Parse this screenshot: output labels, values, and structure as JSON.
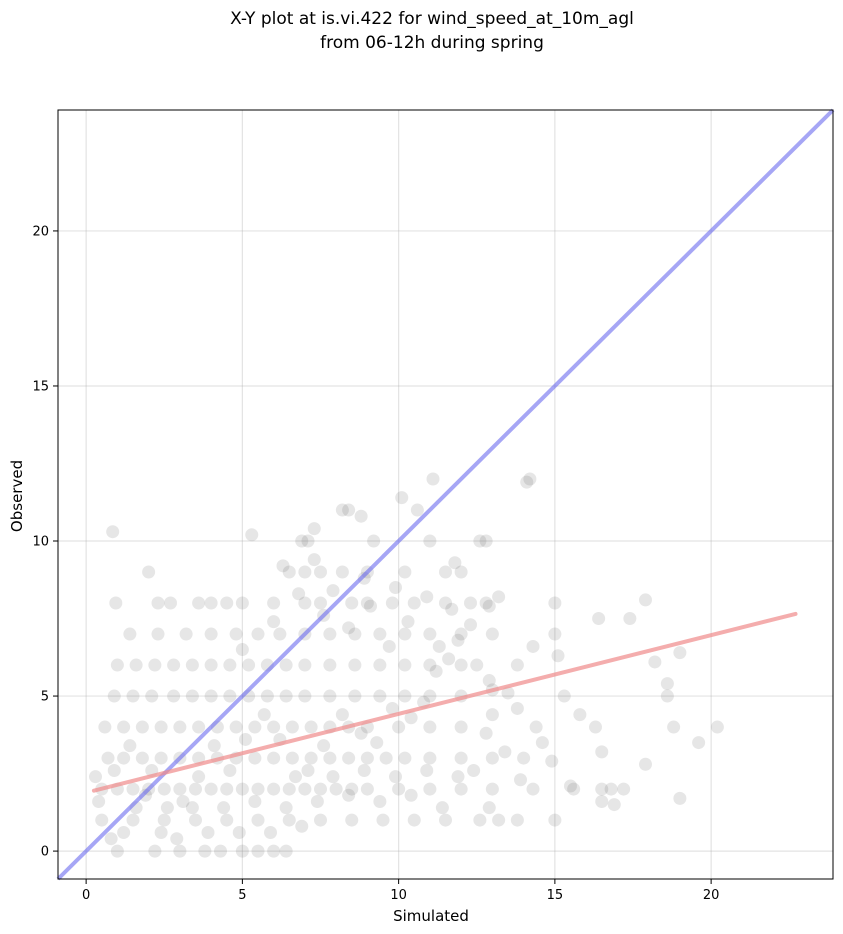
{
  "chart_data": {
    "type": "scatter",
    "title_line1": "X-Y plot at is.vi.422 for wind_speed_at_10m_agl",
    "title_line2": "from 06-12h during spring",
    "xlabel": "Simulated",
    "ylabel": "Observed",
    "xlim": [
      -0.9,
      23.9
    ],
    "ylim": [
      -0.9,
      23.9
    ],
    "xticks": [
      0,
      5,
      10,
      15,
      20
    ],
    "yticks": [
      0,
      5,
      10,
      15,
      20
    ],
    "grid": true,
    "point_color": "#555555",
    "identity_line": {
      "x": [
        -0.9,
        23.9
      ],
      "y": [
        -0.9,
        23.9
      ],
      "color": "#6b6bef"
    },
    "fit_line": {
      "x": [
        0.25,
        22.7
      ],
      "y": [
        1.95,
        7.65
      ],
      "color": "#f08a8a"
    },
    "points": [
      [
        0.85,
        10.3
      ],
      [
        5.3,
        10.2
      ],
      [
        2.0,
        9.0
      ],
      [
        0.95,
        8.0
      ],
      [
        2.3,
        8.0
      ],
      [
        2.7,
        8.0
      ],
      [
        3.6,
        8.0
      ],
      [
        4.0,
        8.0
      ],
      [
        4.5,
        8.0
      ],
      [
        5.0,
        8.0
      ],
      [
        6.0,
        8.0
      ],
      [
        7.0,
        8.0
      ],
      [
        7.5,
        8.0
      ],
      [
        8.5,
        8.0
      ],
      [
        9.0,
        8.0
      ],
      [
        9.8,
        8.0
      ],
      [
        10.5,
        8.0
      ],
      [
        11.5,
        8.0
      ],
      [
        12.3,
        8.0
      ],
      [
        12.8,
        8.0
      ],
      [
        15.0,
        8.0
      ],
      [
        6.5,
        9.0
      ],
      [
        7.0,
        9.0
      ],
      [
        7.5,
        9.0
      ],
      [
        8.2,
        9.0
      ],
      [
        9.0,
        9.0
      ],
      [
        10.2,
        9.0
      ],
      [
        11.5,
        9.0
      ],
      [
        12.0,
        9.0
      ],
      [
        6.3,
        9.2
      ],
      [
        6.9,
        10.0
      ],
      [
        7.3,
        10.4
      ],
      [
        7.1,
        10.0
      ],
      [
        8.2,
        11.0
      ],
      [
        8.4,
        11.0
      ],
      [
        8.8,
        10.8
      ],
      [
        9.2,
        10.0
      ],
      [
        10.1,
        11.4
      ],
      [
        10.6,
        11.0
      ],
      [
        11.0,
        10.0
      ],
      [
        11.1,
        12.0
      ],
      [
        12.6,
        10.0
      ],
      [
        12.8,
        10.0
      ],
      [
        14.1,
        11.9
      ],
      [
        14.2,
        12.0
      ],
      [
        16.4,
        7.5
      ],
      [
        17.4,
        7.5
      ],
      [
        17.9,
        8.1
      ],
      [
        18.2,
        6.1
      ],
      [
        18.6,
        5.4
      ],
      [
        18.6,
        5.0
      ],
      [
        19.0,
        6.4
      ],
      [
        18.8,
        4.0
      ],
      [
        19.6,
        3.5
      ],
      [
        20.2,
        4.0
      ],
      [
        17.9,
        2.8
      ],
      [
        19.0,
        1.7
      ],
      [
        16.3,
        4.0
      ],
      [
        16.5,
        3.2
      ],
      [
        15.8,
        4.4
      ],
      [
        15.6,
        2.0
      ],
      [
        15.5,
        2.1
      ],
      [
        16.5,
        2.0
      ],
      [
        16.8,
        2.0
      ],
      [
        17.2,
        2.0
      ],
      [
        16.9,
        1.5
      ],
      [
        16.5,
        1.6
      ],
      [
        15.0,
        1.0
      ],
      [
        14.3,
        2.0
      ],
      [
        14.6,
        3.5
      ],
      [
        14.4,
        4.0
      ],
      [
        14.0,
        3.0
      ],
      [
        13.8,
        1.0
      ],
      [
        13.2,
        1.0
      ],
      [
        12.6,
        1.0
      ],
      [
        11.5,
        1.0
      ],
      [
        10.5,
        1.0
      ],
      [
        9.5,
        1.0
      ],
      [
        8.5,
        1.0
      ],
      [
        7.5,
        1.0
      ],
      [
        6.5,
        1.0
      ],
      [
        5.5,
        1.0
      ],
      [
        4.5,
        1.0
      ],
      [
        3.5,
        1.0
      ],
      [
        2.5,
        1.0
      ],
      [
        1.5,
        1.0
      ],
      [
        0.5,
        1.0
      ],
      [
        1.0,
        0.0
      ],
      [
        2.2,
        0.0
      ],
      [
        3.0,
        0.0
      ],
      [
        3.8,
        0.0
      ],
      [
        4.3,
        0.0
      ],
      [
        5.0,
        0.0
      ],
      [
        5.5,
        0.0
      ],
      [
        6.0,
        0.0
      ],
      [
        6.4,
        0.0
      ],
      [
        0.5,
        2.0
      ],
      [
        1.0,
        2.0
      ],
      [
        1.5,
        2.0
      ],
      [
        2.0,
        2.0
      ],
      [
        2.5,
        2.0
      ],
      [
        3.0,
        2.0
      ],
      [
        3.5,
        2.0
      ],
      [
        4.0,
        2.0
      ],
      [
        4.5,
        2.0
      ],
      [
        5.0,
        2.0
      ],
      [
        5.5,
        2.0
      ],
      [
        6.0,
        2.0
      ],
      [
        6.5,
        2.0
      ],
      [
        7.0,
        2.0
      ],
      [
        7.5,
        2.0
      ],
      [
        8.0,
        2.0
      ],
      [
        8.5,
        2.0
      ],
      [
        9.0,
        2.0
      ],
      [
        10.0,
        2.0
      ],
      [
        11.0,
        2.0
      ],
      [
        12.0,
        2.0
      ],
      [
        13.0,
        2.0
      ],
      [
        0.7,
        3.0
      ],
      [
        1.2,
        3.0
      ],
      [
        1.8,
        3.0
      ],
      [
        2.4,
        3.0
      ],
      [
        3.0,
        3.0
      ],
      [
        3.6,
        3.0
      ],
      [
        4.2,
        3.0
      ],
      [
        4.8,
        3.0
      ],
      [
        5.4,
        3.0
      ],
      [
        6.0,
        3.0
      ],
      [
        6.6,
        3.0
      ],
      [
        7.2,
        3.0
      ],
      [
        7.8,
        3.0
      ],
      [
        8.4,
        3.0
      ],
      [
        9.0,
        3.0
      ],
      [
        9.6,
        3.0
      ],
      [
        10.2,
        3.0
      ],
      [
        11.0,
        3.0
      ],
      [
        12.0,
        3.0
      ],
      [
        13.0,
        3.0
      ],
      [
        0.6,
        4.0
      ],
      [
        1.2,
        4.0
      ],
      [
        1.8,
        4.0
      ],
      [
        2.4,
        4.0
      ],
      [
        3.0,
        4.0
      ],
      [
        3.6,
        4.0
      ],
      [
        4.2,
        4.0
      ],
      [
        4.8,
        4.0
      ],
      [
        5.4,
        4.0
      ],
      [
        6.0,
        4.0
      ],
      [
        6.6,
        4.0
      ],
      [
        7.2,
        4.0
      ],
      [
        7.8,
        4.0
      ],
      [
        8.4,
        4.0
      ],
      [
        9.0,
        4.0
      ],
      [
        10.0,
        4.0
      ],
      [
        11.0,
        4.0
      ],
      [
        12.0,
        4.0
      ],
      [
        0.9,
        5.0
      ],
      [
        1.5,
        5.0
      ],
      [
        2.1,
        5.0
      ],
      [
        2.8,
        5.0
      ],
      [
        3.4,
        5.0
      ],
      [
        4.0,
        5.0
      ],
      [
        4.6,
        5.0
      ],
      [
        5.2,
        5.0
      ],
      [
        5.8,
        5.0
      ],
      [
        6.4,
        5.0
      ],
      [
        7.0,
        5.0
      ],
      [
        7.8,
        5.0
      ],
      [
        8.6,
        5.0
      ],
      [
        9.4,
        5.0
      ],
      [
        10.2,
        5.0
      ],
      [
        11.0,
        5.0
      ],
      [
        12.0,
        5.0
      ],
      [
        13.0,
        5.2
      ],
      [
        1.0,
        6.0
      ],
      [
        1.6,
        6.0
      ],
      [
        2.2,
        6.0
      ],
      [
        2.8,
        6.0
      ],
      [
        3.4,
        6.0
      ],
      [
        4.0,
        6.0
      ],
      [
        4.6,
        6.0
      ],
      [
        5.2,
        6.0
      ],
      [
        5.8,
        6.0
      ],
      [
        6.4,
        6.0
      ],
      [
        7.0,
        6.0
      ],
      [
        7.8,
        6.0
      ],
      [
        8.6,
        6.0
      ],
      [
        9.4,
        6.0
      ],
      [
        10.2,
        6.0
      ],
      [
        11.0,
        6.0
      ],
      [
        12.0,
        6.0
      ],
      [
        13.8,
        6.0
      ],
      [
        1.4,
        7.0
      ],
      [
        2.3,
        7.0
      ],
      [
        3.2,
        7.0
      ],
      [
        4.0,
        7.0
      ],
      [
        4.8,
        7.0
      ],
      [
        5.5,
        7.0
      ],
      [
        6.2,
        7.0
      ],
      [
        7.0,
        7.0
      ],
      [
        7.8,
        7.0
      ],
      [
        8.6,
        7.0
      ],
      [
        9.4,
        7.0
      ],
      [
        10.2,
        7.0
      ],
      [
        11.0,
        7.0
      ],
      [
        12.0,
        7.0
      ],
      [
        13.0,
        7.0
      ],
      [
        15.0,
        7.0
      ],
      [
        15.1,
        6.3
      ],
      [
        14.3,
        6.6
      ],
      [
        13.5,
        5.1
      ],
      [
        13.8,
        4.6
      ],
      [
        13.0,
        4.4
      ],
      [
        12.8,
        3.8
      ],
      [
        12.9,
        5.5
      ],
      [
        12.5,
        6.0
      ],
      [
        11.6,
        6.2
      ],
      [
        11.2,
        5.8
      ],
      [
        10.8,
        4.8
      ],
      [
        10.4,
        4.3
      ],
      [
        9.8,
        4.6
      ],
      [
        9.3,
        3.5
      ],
      [
        8.8,
        3.8
      ],
      [
        8.2,
        4.4
      ],
      [
        7.6,
        3.4
      ],
      [
        7.1,
        2.6
      ],
      [
        6.7,
        2.4
      ],
      [
        6.2,
        3.6
      ],
      [
        5.7,
        4.4
      ],
      [
        5.1,
        3.6
      ],
      [
        4.6,
        2.6
      ],
      [
        4.1,
        3.4
      ],
      [
        3.6,
        2.4
      ],
      [
        3.1,
        1.6
      ],
      [
        2.6,
        1.4
      ],
      [
        2.1,
        2.6
      ],
      [
        1.6,
        1.4
      ],
      [
        1.2,
        0.6
      ],
      [
        0.8,
        0.4
      ],
      [
        0.4,
        1.6
      ],
      [
        0.3,
        2.4
      ],
      [
        0.9,
        2.6
      ],
      [
        1.4,
        3.4
      ],
      [
        1.9,
        1.8
      ],
      [
        2.4,
        0.6
      ],
      [
        2.9,
        0.4
      ],
      [
        3.4,
        1.4
      ],
      [
        3.9,
        0.6
      ],
      [
        4.4,
        1.4
      ],
      [
        4.9,
        0.6
      ],
      [
        5.4,
        1.6
      ],
      [
        5.9,
        0.6
      ],
      [
        6.4,
        1.4
      ],
      [
        6.9,
        0.8
      ],
      [
        7.4,
        1.6
      ],
      [
        7.9,
        2.4
      ],
      [
        8.4,
        1.8
      ],
      [
        8.9,
        2.6
      ],
      [
        9.4,
        1.6
      ],
      [
        9.9,
        2.4
      ],
      [
        10.4,
        1.8
      ],
      [
        10.9,
        2.6
      ],
      [
        11.4,
        1.4
      ],
      [
        11.9,
        2.4
      ],
      [
        12.4,
        2.6
      ],
      [
        12.9,
        1.4
      ],
      [
        13.4,
        3.2
      ],
      [
        13.9,
        2.3
      ],
      [
        14.9,
        2.9
      ],
      [
        15.3,
        5.0
      ],
      [
        5.0,
        6.5
      ],
      [
        6.0,
        7.4
      ],
      [
        6.8,
        8.3
      ],
      [
        7.6,
        7.6
      ],
      [
        8.4,
        7.2
      ],
      [
        9.1,
        7.9
      ],
      [
        9.7,
        6.6
      ],
      [
        10.3,
        7.4
      ],
      [
        11.3,
        6.6
      ],
      [
        11.9,
        6.8
      ],
      [
        12.3,
        7.3
      ],
      [
        12.9,
        7.9
      ],
      [
        13.2,
        8.2
      ],
      [
        11.8,
        9.3
      ],
      [
        11.7,
        7.8
      ],
      [
        10.9,
        8.2
      ],
      [
        9.9,
        8.5
      ],
      [
        8.9,
        8.8
      ],
      [
        7.9,
        8.4
      ],
      [
        7.3,
        9.4
      ]
    ]
  }
}
